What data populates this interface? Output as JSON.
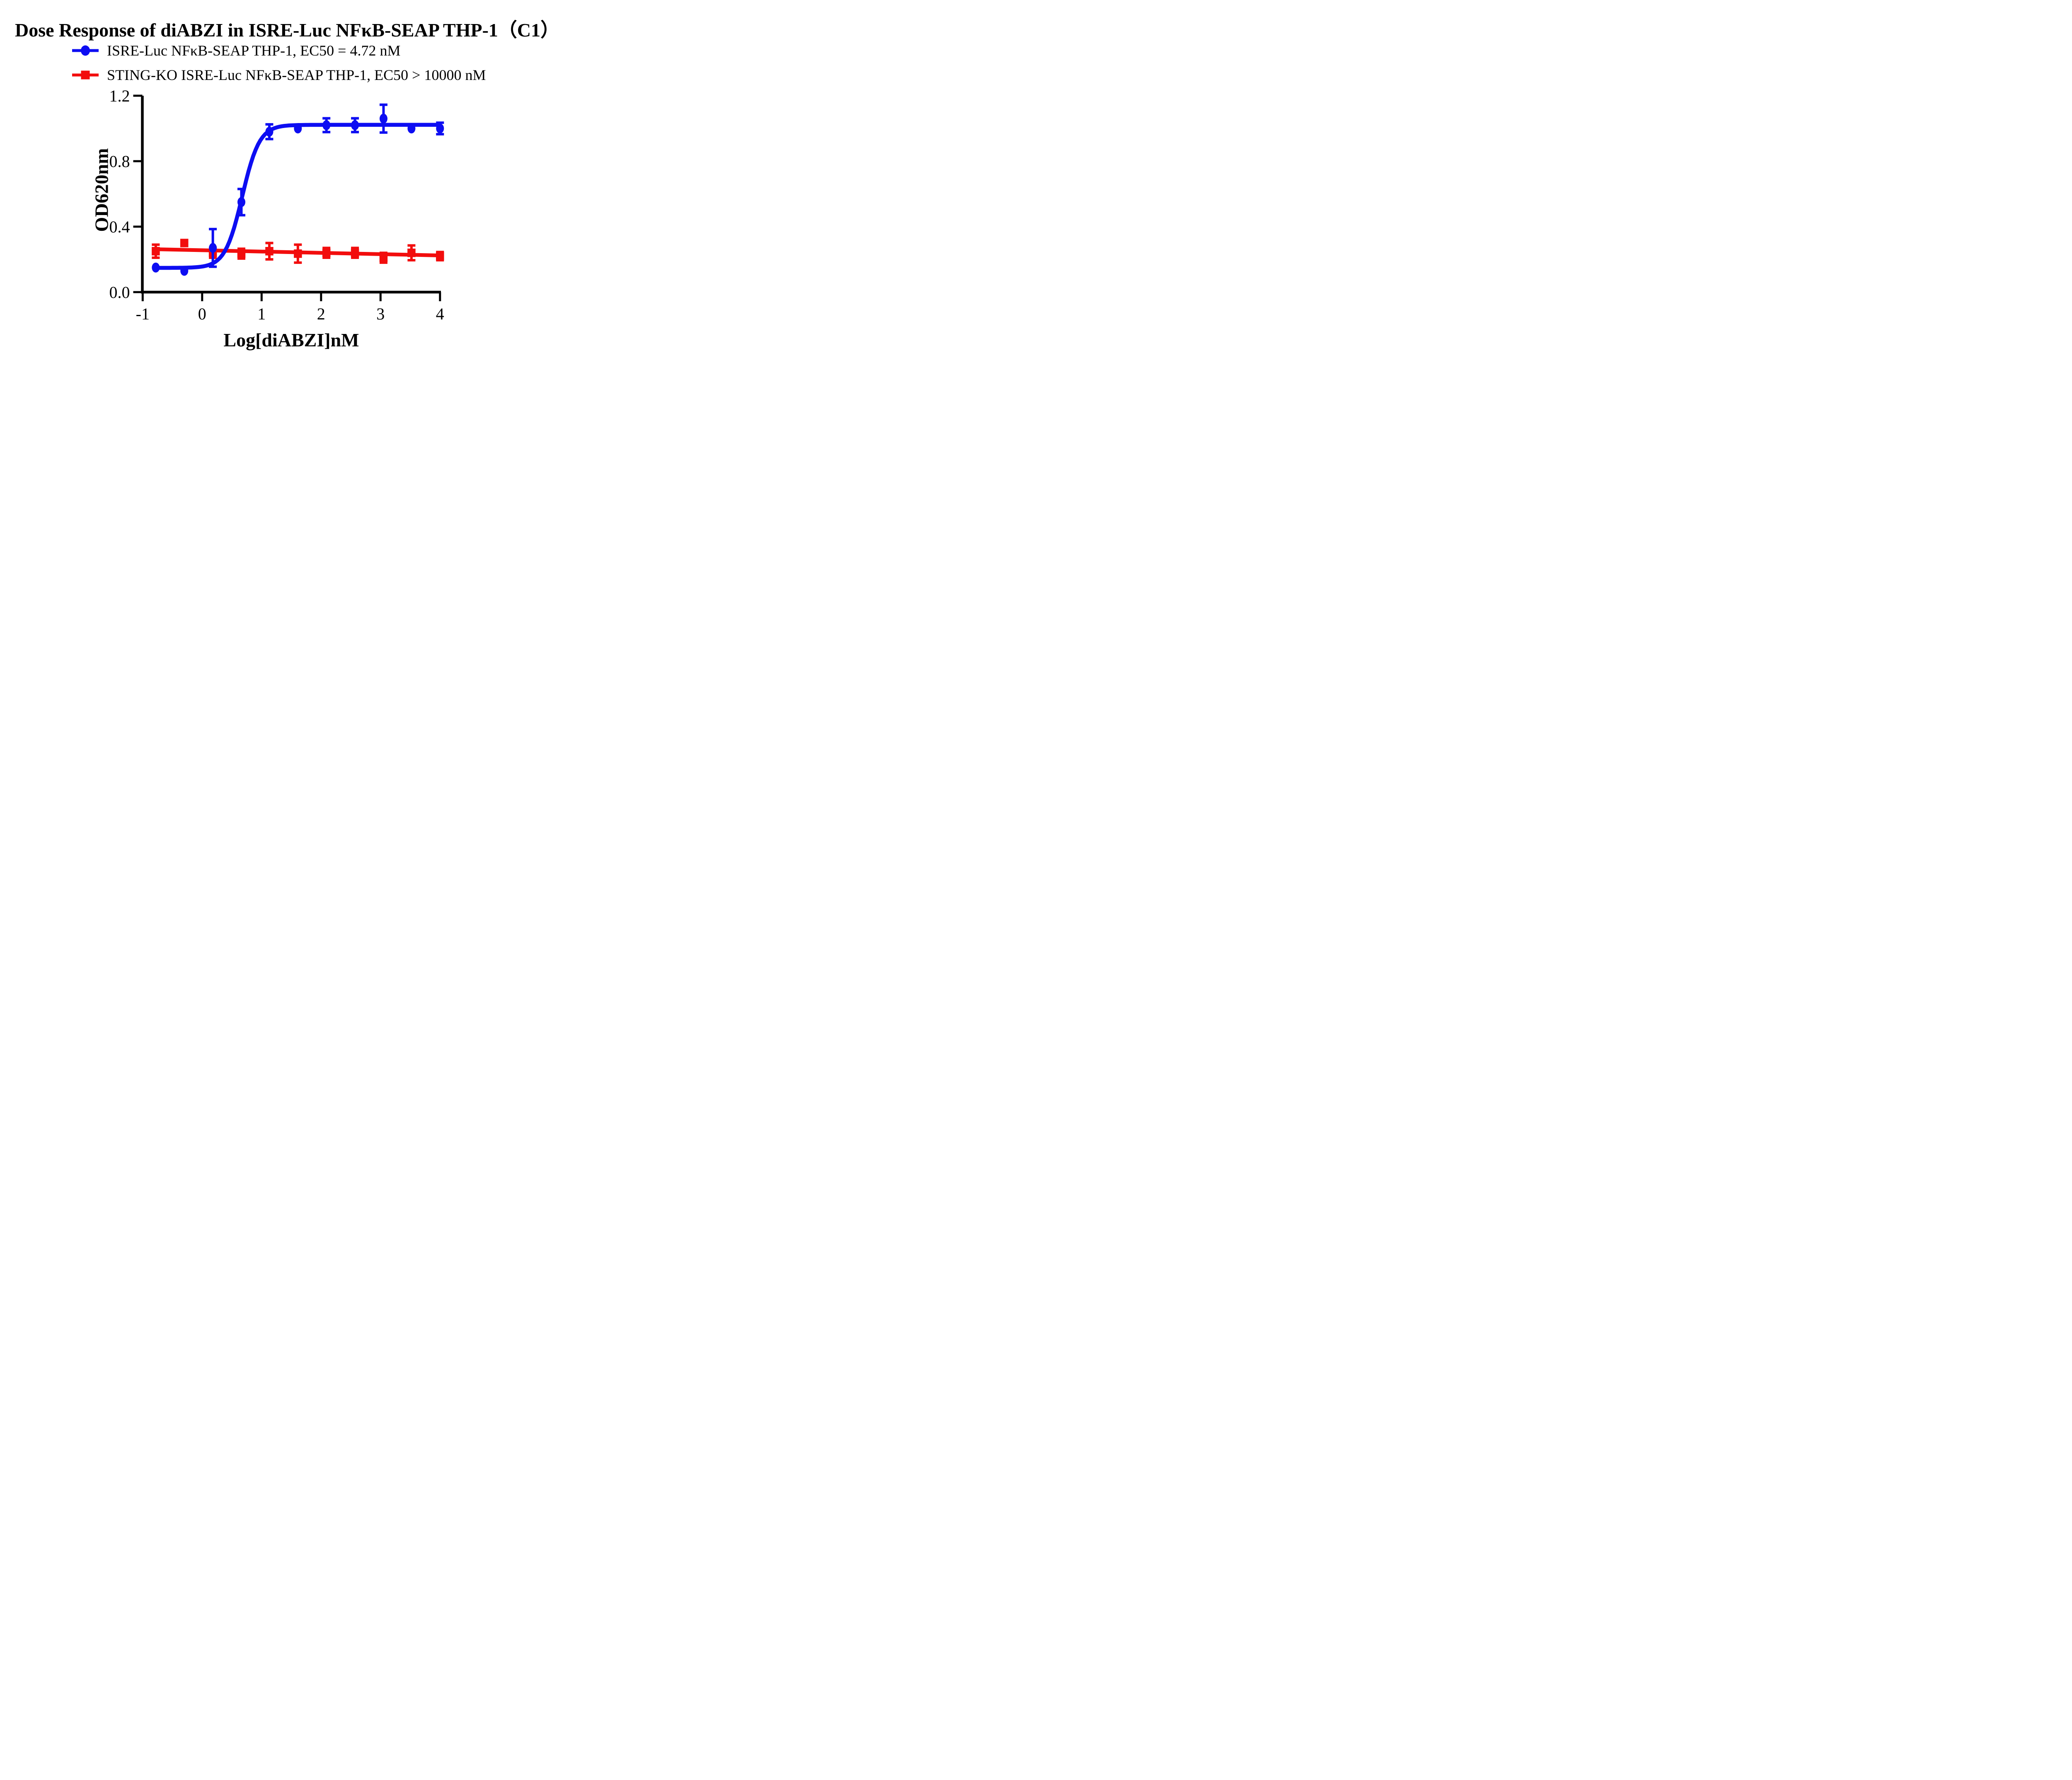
{
  "title": "Dose Response of diABZI in ISRE-Luc NFκB-SEAP THP-1（C1）",
  "legend": [
    {
      "label": "ISRE-Luc NFκB-SEAP THP-1, EC50 = 4.72 nM",
      "marker": "circle",
      "color": "#0d0df2"
    },
    {
      "label": "STING-KO ISRE-Luc NFκB-SEAP THP-1, EC50 > 10000 nM",
      "marker": "square",
      "color": "#f20d0d"
    }
  ],
  "chart_data": {
    "type": "scatter",
    "title": "Dose Response of diABZI in ISRE-Luc NFκB-SEAP THP-1（C1）",
    "xlabel": "Log[diABZI]nM",
    "ylabel": "OD620nm",
    "xlim": [
      -1,
      4
    ],
    "ylim": [
      0.0,
      1.2
    ],
    "x_ticks": [
      -1,
      0,
      1,
      2,
      3,
      4
    ],
    "x_tick_labels": [
      "-1",
      "0",
      "1",
      "2",
      "3",
      "4"
    ],
    "y_ticks": [
      0.0,
      0.4,
      0.8,
      1.2
    ],
    "y_tick_labels": [
      "0.0",
      "0.4",
      "0.8",
      "1.2"
    ],
    "grid": false,
    "legend_position": "top-left",
    "axis_color": "#000000",
    "series": [
      {
        "name": "ISRE-Luc NFκB-SEAP THP-1",
        "ec50_label": "EC50 = 4.72 nM",
        "color": "#0d0df2",
        "marker": "circle",
        "x": [
          -0.78,
          -0.3,
          0.18,
          0.66,
          1.13,
          1.61,
          2.09,
          2.57,
          3.05,
          3.52,
          4.0
        ],
        "y": [
          0.15,
          0.13,
          0.27,
          0.55,
          0.98,
          1.0,
          1.02,
          1.02,
          1.06,
          1.0,
          1.0
        ],
        "err": [
          0,
          0,
          0.115,
          0.08,
          0.045,
          0,
          0.042,
          0.042,
          0.085,
          0,
          0.035
        ],
        "fit": {
          "type": "sigmoid",
          "bottom": 0.148,
          "top": 1.022,
          "logEC50": 0.674,
          "hill": 3.0,
          "x_start": -0.78,
          "x_end": 4.0
        }
      },
      {
        "name": "STING-KO ISRE-Luc NFκB-SEAP THP-1",
        "ec50_label": "EC50 > 10000 nM",
        "color": "#f20d0d",
        "marker": "square",
        "x": [
          -0.78,
          -0.3,
          0.18,
          0.66,
          1.13,
          1.61,
          2.09,
          2.57,
          3.05,
          3.52,
          4.0
        ],
        "y": [
          0.25,
          0.3,
          0.24,
          0.235,
          0.25,
          0.235,
          0.24,
          0.24,
          0.21,
          0.24,
          0.22
        ],
        "err": [
          0.04,
          0,
          0.03,
          0.03,
          0.05,
          0.055,
          0.03,
          0.03,
          0.03,
          0.045,
          0.025
        ],
        "fit": {
          "type": "linear",
          "x1": -0.78,
          "y1": 0.262,
          "x2": 4.0,
          "y2": 0.224
        }
      }
    ]
  }
}
